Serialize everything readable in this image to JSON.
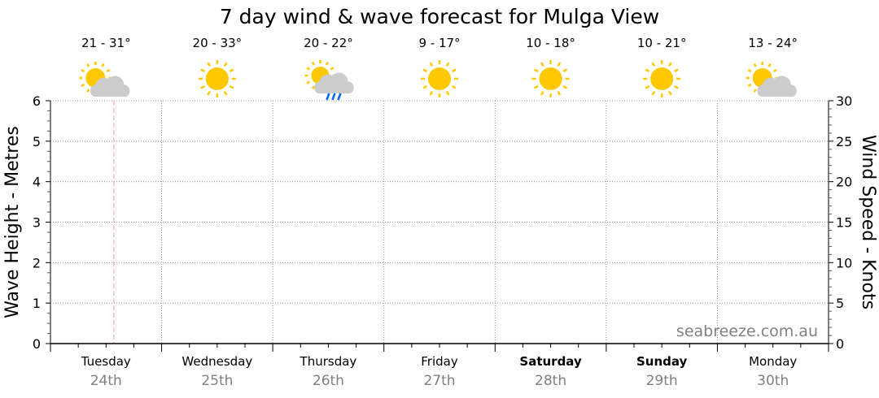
{
  "chart_data": {
    "type": "line",
    "title": "7 day wind & wave forecast for Mulga View",
    "y_left": {
      "label": "Wave Height - Metres",
      "range": [
        0,
        6
      ],
      "ticks": [
        0,
        1,
        2,
        3,
        4,
        5,
        6
      ],
      "minor_step": 0.25
    },
    "y_right": {
      "label": "Wind Speed - Knots",
      "range": [
        0,
        30
      ],
      "ticks": [
        0,
        5,
        10,
        15,
        20,
        25,
        30
      ],
      "minor_step": 1
    },
    "grid": true,
    "current_time_marker": {
      "day_index": 0,
      "fraction_of_day": 0.57,
      "color": "#ff9999"
    },
    "series": [],
    "days": [
      {
        "day": "Tuesday",
        "date": "24th",
        "temp": "21 - 31°",
        "icon": "partly-cloudy-icon",
        "bold": false
      },
      {
        "day": "Wednesday",
        "date": "25th",
        "temp": "20 - 33°",
        "icon": "sunny-icon",
        "bold": false
      },
      {
        "day": "Thursday",
        "date": "26th",
        "temp": "20 - 22°",
        "icon": "showers-icon",
        "bold": false
      },
      {
        "day": "Friday",
        "date": "27th",
        "temp": "9 - 17°",
        "icon": "sunny-icon",
        "bold": false
      },
      {
        "day": "Saturday",
        "date": "28th",
        "temp": "10 - 18°",
        "icon": "sunny-icon",
        "bold": true
      },
      {
        "day": "Sunday",
        "date": "29th",
        "temp": "10 - 21°",
        "icon": "sunny-icon",
        "bold": true
      },
      {
        "day": "Monday",
        "date": "30th",
        "temp": "13 - 24°",
        "icon": "partly-cloudy-icon",
        "bold": false
      }
    ],
    "watermark": "seabreeze.com.au",
    "colors": {
      "sun": "#ffc800",
      "cloud": "#cccccc",
      "rain": "#0066ff",
      "grid": "#999999"
    }
  }
}
